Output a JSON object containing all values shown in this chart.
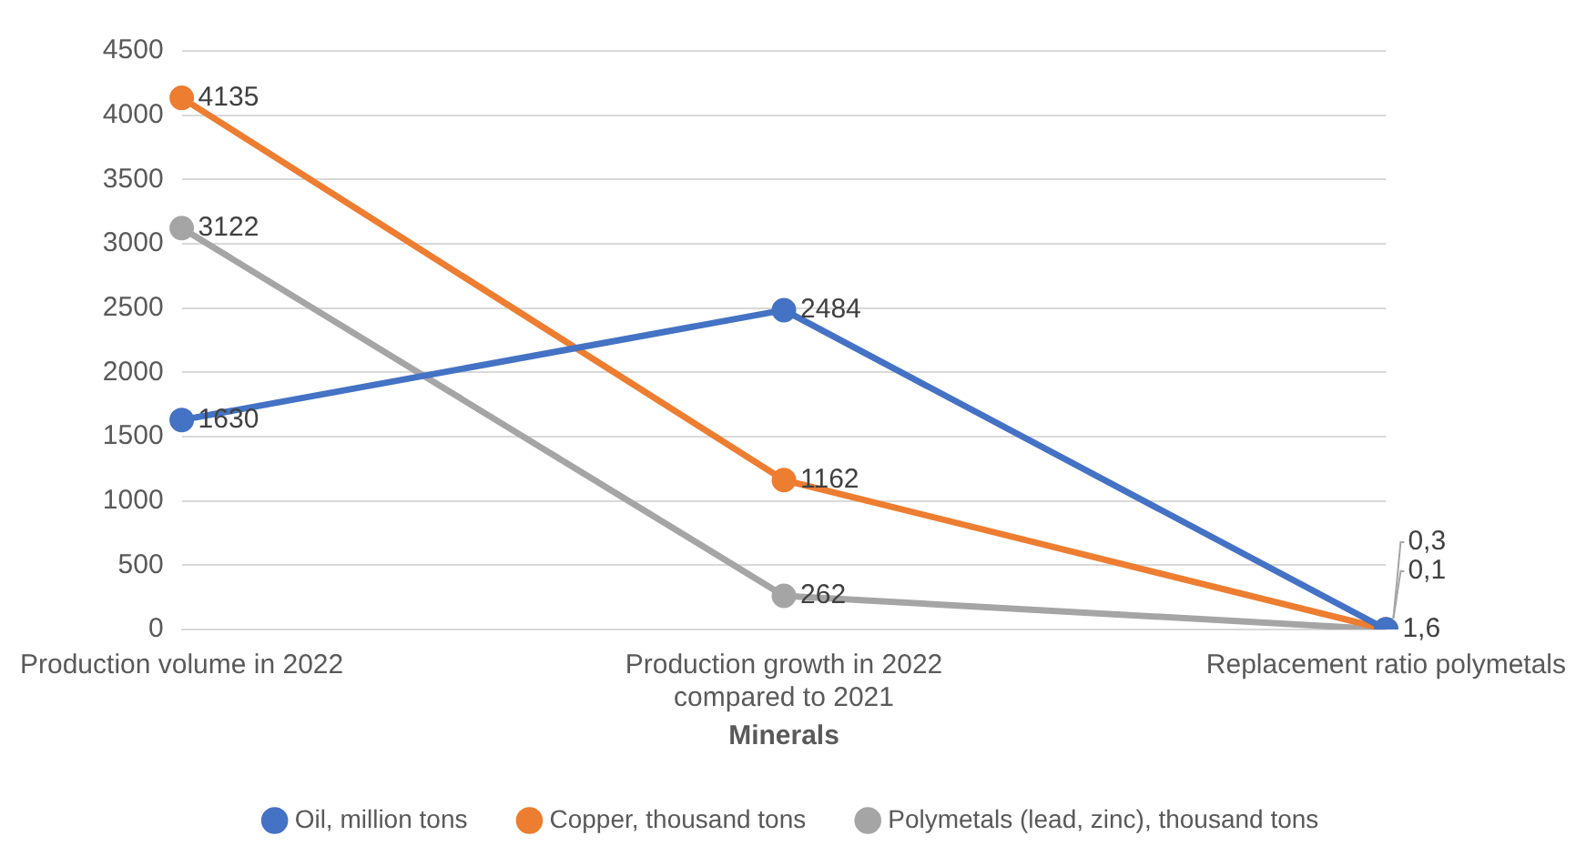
{
  "chart_data": {
    "type": "line",
    "xlabel": "Minerals",
    "categories": [
      "Production volume in 2022",
      "Production growth in 2022 compared to 2021",
      "Replacement ratio polymetals"
    ],
    "series": [
      {
        "name": "Oil, million tons",
        "color": "#4472c4",
        "values": [
          1630,
          2484,
          1.6
        ],
        "value_labels": [
          "1630",
          "2484",
          "1,6"
        ]
      },
      {
        "name": "Copper, thousand tons",
        "color": "#ed7d31",
        "values": [
          4135,
          1162,
          0.1
        ],
        "value_labels": [
          "4135",
          "1162",
          "0,1"
        ]
      },
      {
        "name": "Polymetals (lead, zinc), thousand tons",
        "color": "#a5a5a5",
        "values": [
          3122,
          262,
          0.3
        ],
        "value_labels": [
          "3122",
          "262",
          "0,3"
        ]
      }
    ],
    "ylim": [
      0,
      4500
    ],
    "yticks": [
      0,
      500,
      1000,
      1500,
      2000,
      2500,
      3000,
      3500,
      4000,
      4500
    ],
    "grid": "y",
    "legend": "bottom",
    "marker": "circle",
    "line_style": "solid"
  }
}
